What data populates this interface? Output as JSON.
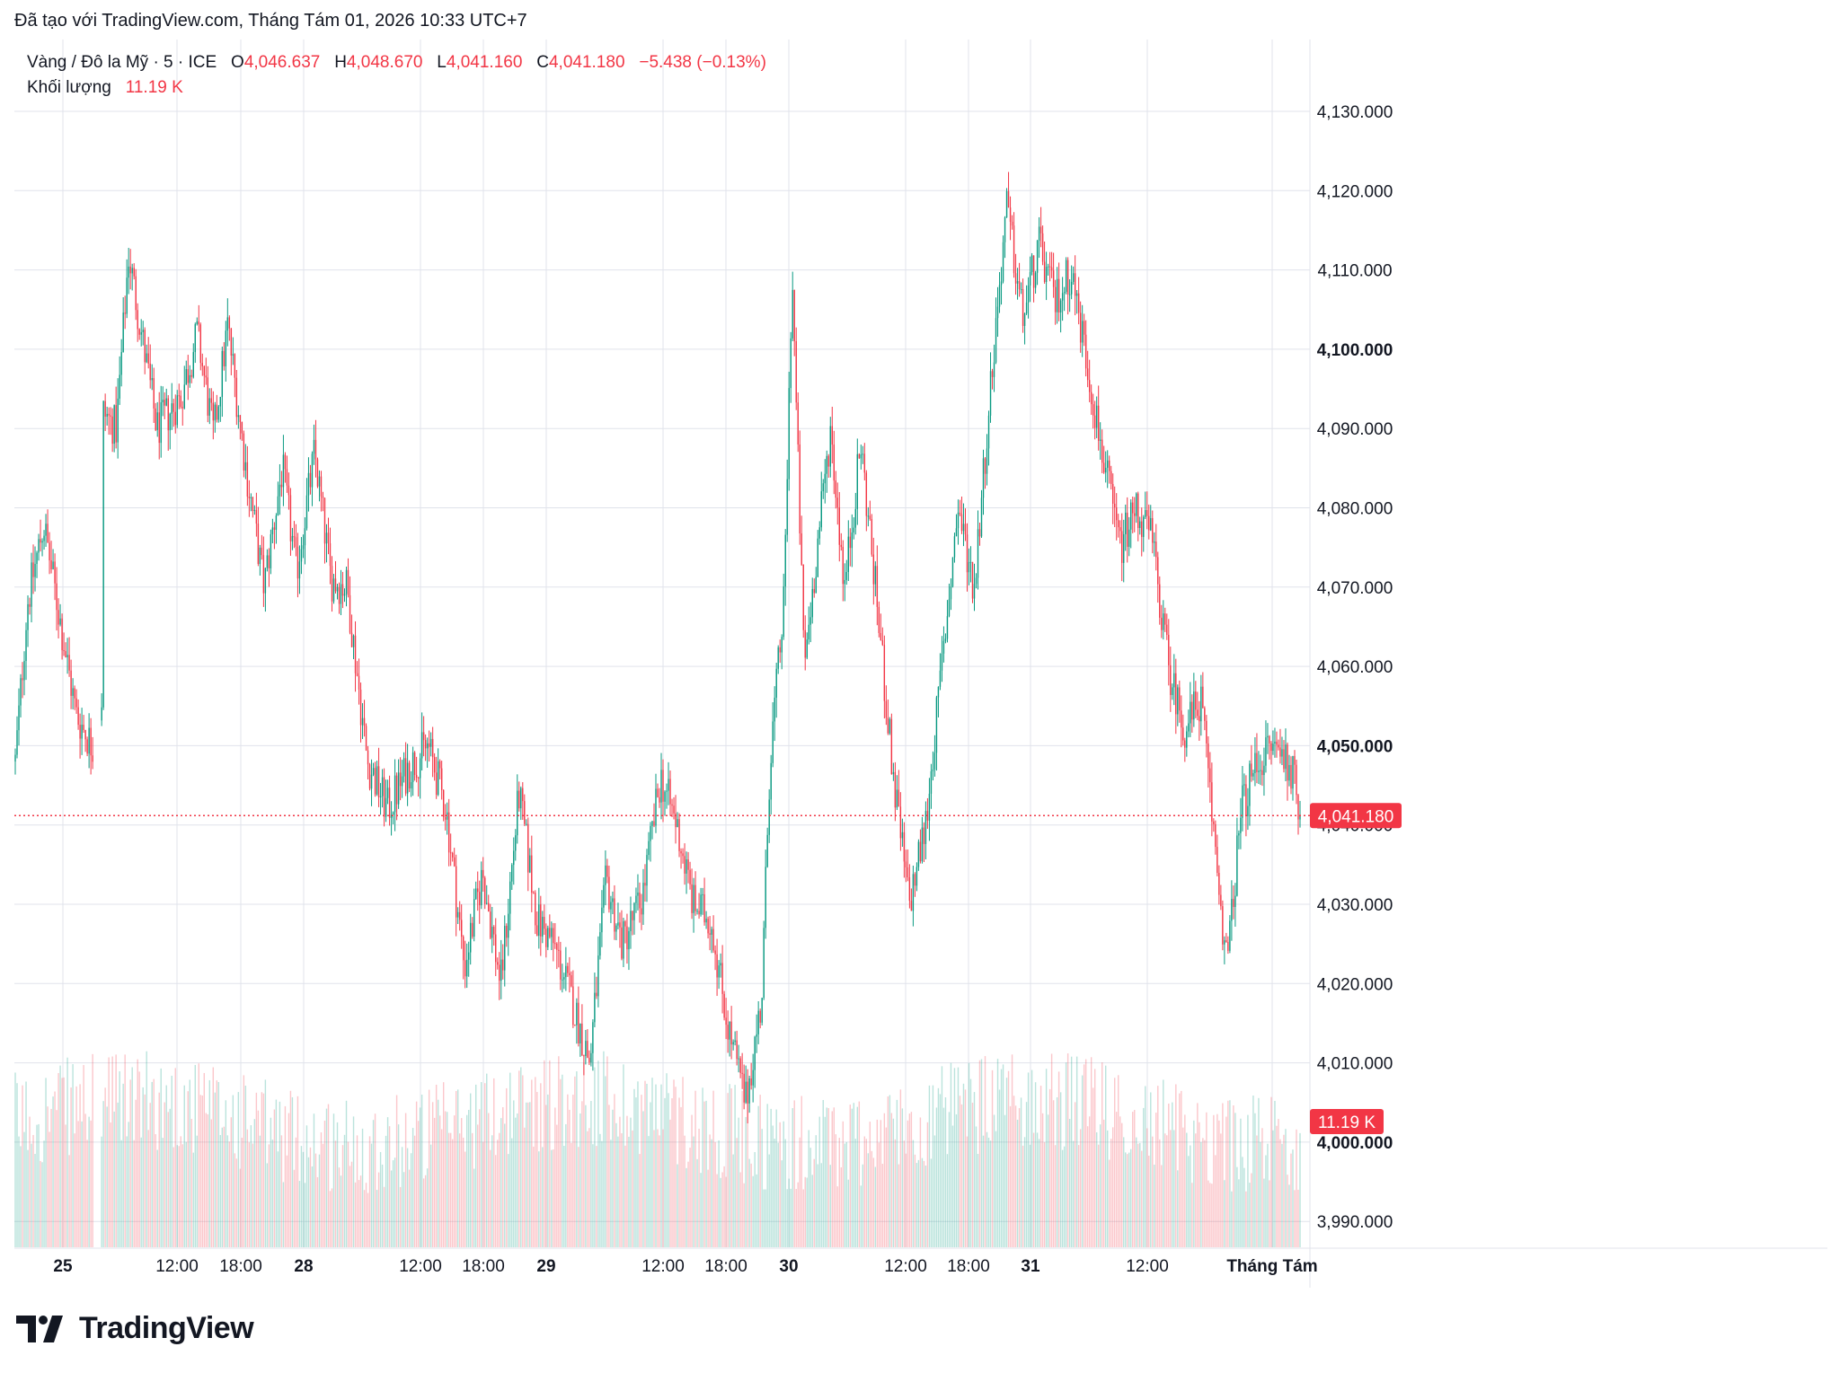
{
  "caption": "Đã tạo với TradingView.com, Tháng Tám 01, 2026 10:33 UTC+7",
  "legend": {
    "symbol": "Vàng / Đô la Mỹ · 5 · ICE",
    "o_label": "O",
    "o_value": "4,046.637",
    "h_label": "H",
    "h_value": "4,048.670",
    "l_label": "L",
    "l_value": "4,041.160",
    "c_label": "C",
    "c_value": "4,041.180",
    "change": "−5.438 (−0.13%)",
    "volume_label": "Khối lượng",
    "volume_value": "11.19 K"
  },
  "brand": {
    "name": "TradingView",
    "logo_icon": "tradingview-logo-icon"
  },
  "colors": {
    "up": "#089981",
    "down": "#f23645",
    "grid": "#e0e3eb",
    "price_tag": "#f23645"
  },
  "chart_data": {
    "type": "candlestick",
    "ylim": [
      3984,
      4136
    ],
    "y_ticks": [
      {
        "value": 4130,
        "label": "4,130.000",
        "bold": false
      },
      {
        "value": 4120,
        "label": "4,120.000",
        "bold": false
      },
      {
        "value": 4110,
        "label": "4,110.000",
        "bold": false
      },
      {
        "value": 4100,
        "label": "4,100.000",
        "bold": true
      },
      {
        "value": 4090,
        "label": "4,090.000",
        "bold": false
      },
      {
        "value": 4080,
        "label": "4,080.000",
        "bold": false
      },
      {
        "value": 4070,
        "label": "4,070.000",
        "bold": false
      },
      {
        "value": 4060,
        "label": "4,060.000",
        "bold": false
      },
      {
        "value": 4050,
        "label": "4,050.000",
        "bold": true
      },
      {
        "value": 4040,
        "label": "4,040.000",
        "bold": false
      },
      {
        "value": 4030,
        "label": "4,030.000",
        "bold": false
      },
      {
        "value": 4020,
        "label": "4,020.000",
        "bold": false
      },
      {
        "value": 4010,
        "label": "4,010.000",
        "bold": false
      },
      {
        "value": 4000,
        "label": "4,000.000",
        "bold": true
      },
      {
        "value": 3990,
        "label": "3,990.000",
        "bold": false
      }
    ],
    "x_ticks": [
      {
        "label": "25",
        "bold": true
      },
      {
        "label": "12:00",
        "bold": false
      },
      {
        "label": "18:00",
        "bold": false
      },
      {
        "label": "28",
        "bold": true
      },
      {
        "label": "12:00",
        "bold": false
      },
      {
        "label": "18:00",
        "bold": false
      },
      {
        "label": "29",
        "bold": true
      },
      {
        "label": "12:00",
        "bold": false
      },
      {
        "label": "18:00",
        "bold": false
      },
      {
        "label": "30",
        "bold": true
      },
      {
        "label": "12:00",
        "bold": false
      },
      {
        "label": "18:00",
        "bold": false
      },
      {
        "label": "31",
        "bold": true
      },
      {
        "label": "12:00",
        "bold": false
      },
      {
        "label": "Tháng Tám",
        "bold": true
      }
    ],
    "last_price": 4041.18,
    "last_price_label": "4,041.180",
    "last_volume_label": "11.19 K",
    "price_path": [
      {
        "t": 0,
        "p": 4048
      },
      {
        "t": 0.6,
        "p": 4068
      },
      {
        "t": 1.4,
        "p": 4078
      },
      {
        "t": 2.2,
        "p": 4066
      },
      {
        "t": 3.0,
        "p": 4054
      },
      {
        "t": 3.8,
        "p": 4050
      },
      {
        "t": 4.3,
        "p": 4054
      },
      {
        "t": 4.35,
        "p": 4092
      },
      {
        "t": 5.0,
        "p": 4090
      },
      {
        "t": 5.6,
        "p": 4112
      },
      {
        "t": 6.3,
        "p": 4101
      },
      {
        "t": 7.0,
        "p": 4090
      },
      {
        "t": 8.2,
        "p": 4094
      },
      {
        "t": 9.0,
        "p": 4102
      },
      {
        "t": 9.8,
        "p": 4089
      },
      {
        "t": 10.5,
        "p": 4103
      },
      {
        "t": 11.4,
        "p": 4085
      },
      {
        "t": 12.3,
        "p": 4070
      },
      {
        "t": 13.2,
        "p": 4085
      },
      {
        "t": 13.9,
        "p": 4072
      },
      {
        "t": 14.8,
        "p": 4087
      },
      {
        "t": 15.6,
        "p": 4071
      },
      {
        "t": 16.4,
        "p": 4070
      },
      {
        "t": 17.4,
        "p": 4048
      },
      {
        "t": 18.4,
        "p": 4042
      },
      {
        "t": 19.4,
        "p": 4047
      },
      {
        "t": 20.4,
        "p": 4050
      },
      {
        "t": 21.3,
        "p": 4042
      },
      {
        "t": 22.2,
        "p": 4022
      },
      {
        "t": 23.1,
        "p": 4034
      },
      {
        "t": 24.0,
        "p": 4020
      },
      {
        "t": 24.9,
        "p": 4044
      },
      {
        "t": 25.8,
        "p": 4028
      },
      {
        "t": 26.6,
        "p": 4025
      },
      {
        "t": 27.5,
        "p": 4018
      },
      {
        "t": 28.4,
        "p": 4010
      },
      {
        "t": 29.2,
        "p": 4033
      },
      {
        "t": 30.0,
        "p": 4025
      },
      {
        "t": 31.0,
        "p": 4031
      },
      {
        "t": 31.9,
        "p": 4046
      },
      {
        "t": 32.7,
        "p": 4040
      },
      {
        "t": 33.5,
        "p": 4030
      },
      {
        "t": 34.4,
        "p": 4028
      },
      {
        "t": 35.2,
        "p": 4015
      },
      {
        "t": 36.1,
        "p": 4005
      },
      {
        "t": 36.9,
        "p": 4018
      },
      {
        "t": 37.3,
        "p": 4048
      },
      {
        "t": 38.0,
        "p": 4068
      },
      {
        "t": 38.4,
        "p": 4110
      },
      {
        "t": 39.0,
        "p": 4060
      },
      {
        "t": 39.6,
        "p": 4074
      },
      {
        "t": 40.3,
        "p": 4090
      },
      {
        "t": 41.0,
        "p": 4070
      },
      {
        "t": 41.8,
        "p": 4088
      },
      {
        "t": 42.6,
        "p": 4068
      },
      {
        "t": 43.4,
        "p": 4046
      },
      {
        "t": 44.2,
        "p": 4030
      },
      {
        "t": 45.0,
        "p": 4040
      },
      {
        "t": 45.8,
        "p": 4060
      },
      {
        "t": 46.6,
        "p": 4080
      },
      {
        "t": 47.4,
        "p": 4070
      },
      {
        "t": 48.2,
        "p": 4095
      },
      {
        "t": 49.0,
        "p": 4118
      },
      {
        "t": 49.8,
        "p": 4104
      },
      {
        "t": 50.6,
        "p": 4113
      },
      {
        "t": 51.4,
        "p": 4106
      },
      {
        "t": 52.2,
        "p": 4110
      },
      {
        "t": 53.0,
        "p": 4098
      },
      {
        "t": 53.8,
        "p": 4086
      },
      {
        "t": 54.6,
        "p": 4075
      },
      {
        "t": 55.4,
        "p": 4080
      },
      {
        "t": 56.2,
        "p": 4076
      },
      {
        "t": 57.0,
        "p": 4060
      },
      {
        "t": 57.8,
        "p": 4052
      },
      {
        "t": 58.6,
        "p": 4056
      },
      {
        "t": 59.4,
        "p": 4035
      },
      {
        "t": 59.9,
        "p": 4022
      },
      {
        "t": 60.6,
        "p": 4042
      },
      {
        "t": 61.4,
        "p": 4048
      },
      {
        "t": 62.2,
        "p": 4050
      },
      {
        "t": 63.0,
        "p": 4048
      },
      {
        "t": 63.6,
        "p": 4041
      }
    ]
  }
}
